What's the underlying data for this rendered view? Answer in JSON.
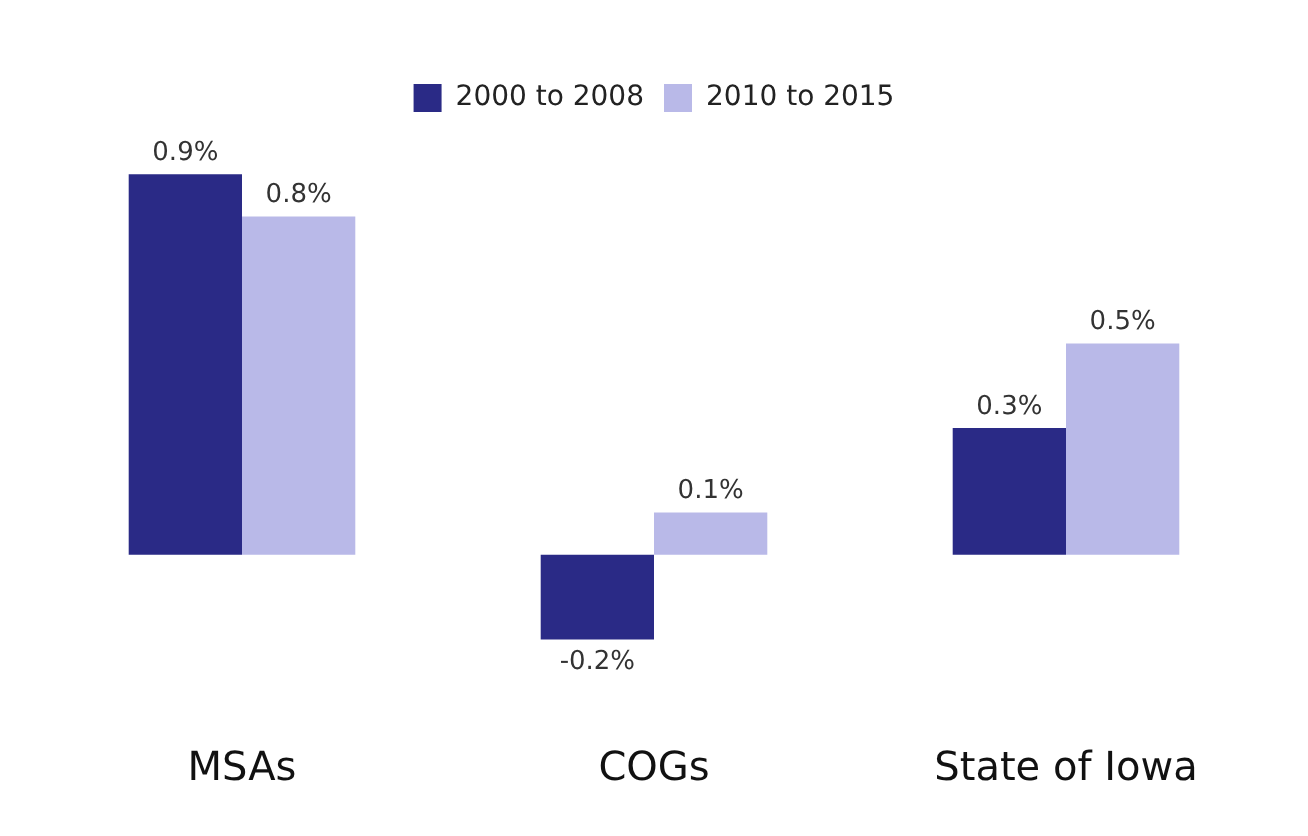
{
  "chart_data": {
    "type": "bar",
    "categories": [
      "MSAs",
      "COGs",
      "State of Iowa"
    ],
    "legend": "top",
    "series": [
      {
        "name": "2000 to 2008",
        "color": "#2a2a86",
        "values": [
          0.9,
          -0.2,
          0.3
        ],
        "value_labels": [
          "0.9%",
          "-0.2%",
          "0.3%"
        ]
      },
      {
        "name": "2010 to 2015",
        "color": "#b9b9e8",
        "values": [
          0.8,
          0.1,
          0.5
        ],
        "value_labels": [
          "0.8%",
          "0.1%",
          "0.5%"
        ]
      }
    ]
  }
}
